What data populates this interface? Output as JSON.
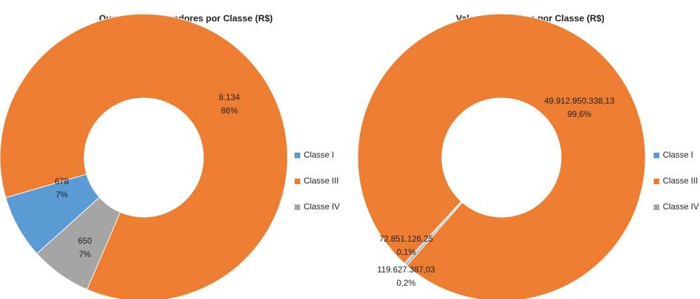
{
  "chart_data": [
    {
      "type": "donut",
      "title": "Quantidade de credores por Classe (R$)",
      "categories": [
        "Classe I",
        "Classe III",
        "Classe IV"
      ],
      "values": [
        678,
        8134,
        650
      ],
      "value_labels": [
        "678",
        "8.134",
        "650"
      ],
      "percent_labels": [
        "7%",
        "86%",
        "7%"
      ],
      "colors": [
        "#5b9bd5",
        "#ed7d31",
        "#a5a5a5"
      ],
      "legend": "right"
    },
    {
      "type": "donut",
      "title": "Valor dos créditos por Classe (R$)",
      "categories": [
        "Classe I",
        "Classe III",
        "Classe IV"
      ],
      "values": [
        72851126.25,
        49912950338.13,
        119627387.03
      ],
      "value_labels": [
        "72.851.126,25",
        "49.912.950.338,13",
        "119.627.387,03"
      ],
      "percent_labels": [
        "0,1%",
        "99,6%",
        "0,2%"
      ],
      "colors": [
        "#5b9bd5",
        "#ed7d31",
        "#a5a5a5"
      ],
      "legend": "right"
    }
  ]
}
